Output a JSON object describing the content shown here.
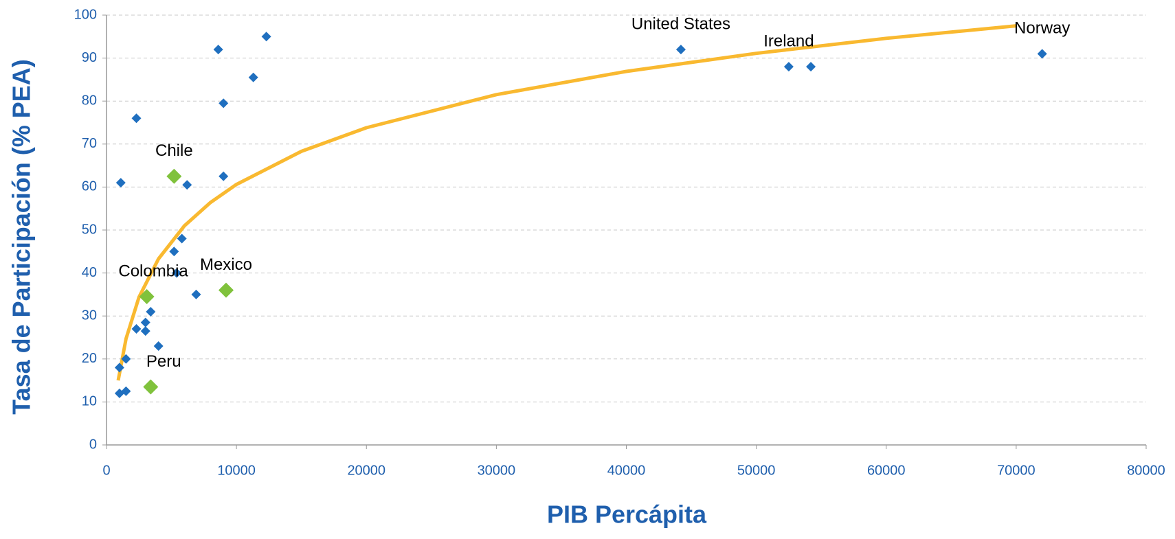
{
  "chart_data": {
    "type": "scatter",
    "x_label": "PIB Percápita",
    "y_label": "Tasa de Participación  (% PEA)",
    "xlim": [
      0,
      80000
    ],
    "xticks": [
      0,
      10000,
      20000,
      30000,
      40000,
      50000,
      60000,
      70000,
      80000
    ],
    "ylim": [
      0,
      100
    ],
    "yticks": [
      0,
      10,
      20,
      30,
      40,
      50,
      60,
      70,
      80,
      90,
      100
    ],
    "grid": true,
    "series": [
      {
        "color": "#1f6fbf",
        "marker_size": 7,
        "x": [
          1000,
          1000,
          1100,
          1500,
          1500,
          2300,
          2300,
          3000,
          3000,
          3400,
          4000,
          5200,
          5400,
          5800,
          6200,
          6900,
          8600,
          9000,
          9000,
          11300,
          12300,
          44200,
          52500,
          54200,
          72000
        ],
        "y": [
          18,
          12,
          61,
          20,
          12.5,
          76,
          27,
          28.5,
          26.5,
          31,
          23,
          45,
          40,
          48,
          60.5,
          35,
          92,
          79.5,
          62.5,
          85.5,
          95,
          92,
          88,
          88,
          91
        ]
      },
      {
        "color": "#80c23c",
        "marker_size": 11,
        "x": [
          5200,
          3100,
          9200,
          3400
        ],
        "y": [
          62.5,
          34.5,
          36,
          13.5
        ]
      }
    ],
    "trendline": {
      "color": "#f9b930",
      "x": [
        900,
        1500,
        2500,
        4000,
        6000,
        8000,
        10000,
        15000,
        20000,
        30000,
        40000,
        50000,
        60000,
        70000
      ],
      "y": [
        15.0,
        24.7,
        34.4,
        43.3,
        51.0,
        56.4,
        60.6,
        68.3,
        73.8,
        81.5,
        86.9,
        91.1,
        94.6,
        97.5
      ]
    },
    "annotations": [
      {
        "text": "Chile",
        "x": 5200,
        "y": 62.5
      },
      {
        "text": "Colombia",
        "x": 3600,
        "y": 34.5
      },
      {
        "text": "Mexico",
        "x": 9200,
        "y": 36
      },
      {
        "text": "Peru",
        "x": 4400,
        "y": 13.5
      },
      {
        "text": "United States",
        "x": 44200,
        "y": 92
      },
      {
        "text": "Ireland",
        "x": 52500,
        "y": 88
      },
      {
        "text": "Norway",
        "x": 72000,
        "y": 91
      }
    ]
  }
}
